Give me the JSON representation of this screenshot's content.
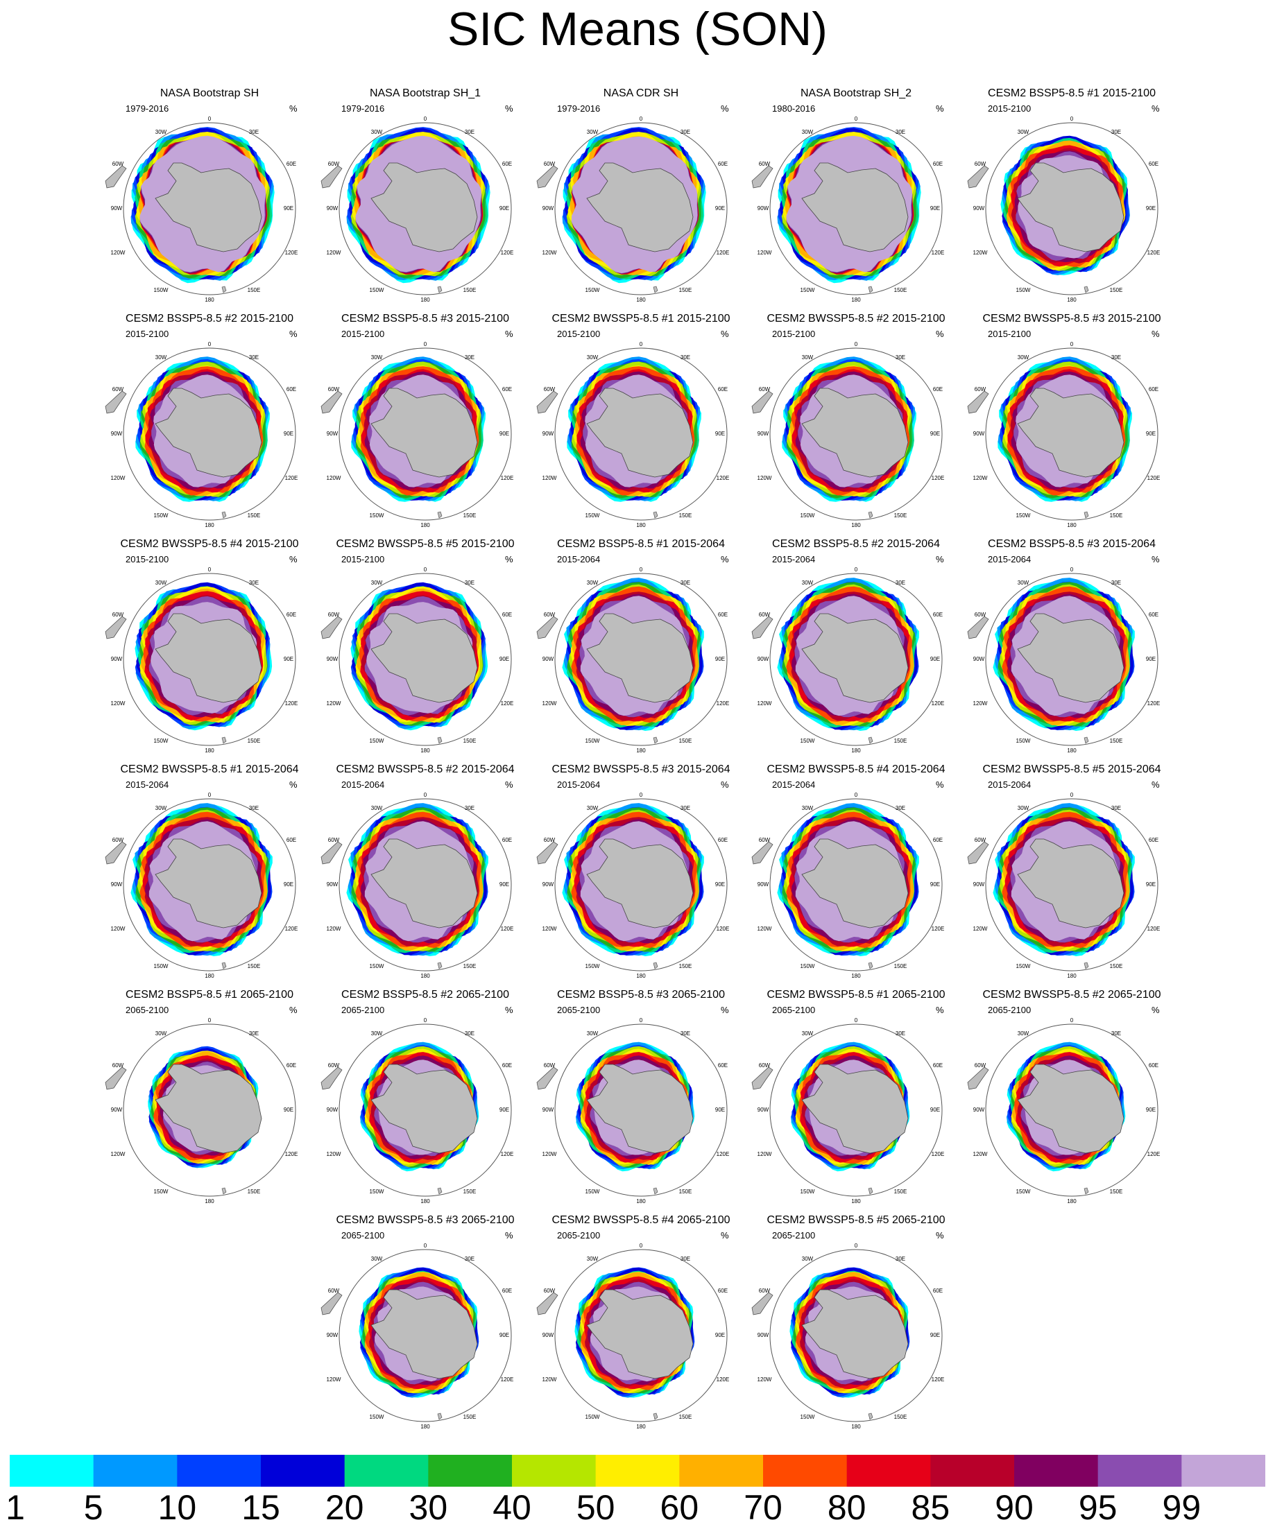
{
  "figure": {
    "title": "SIC Means (SON)"
  },
  "map_labels": {
    "lon_top": "0",
    "lon_30w": "30W",
    "lon_30e": "30E",
    "lon_60w": "60W",
    "lon_60e": "60E",
    "lon_90w": "90W",
    "lon_90e": "90E",
    "lon_120w": "120W",
    "lon_120e": "120E",
    "lon_150w": "150W",
    "lon_150e": "150E",
    "lon_bottom": "180"
  },
  "chart_data": {
    "type": "map-grid",
    "variable": "Sea ice concentration",
    "unit": "%",
    "panels": [
      {
        "title": "NASA Bootstrap SH",
        "period": "1979-2016",
        "unit": "%",
        "extent": 1.0,
        "core": 0.7
      },
      {
        "title": "NASA Bootstrap SH_1",
        "period": "1979-2016",
        "unit": "%",
        "extent": 1.0,
        "core": 0.7
      },
      {
        "title": "NASA CDR SH",
        "period": "1979-2016",
        "unit": "%",
        "extent": 1.0,
        "core": 0.72
      },
      {
        "title": "NASA Bootstrap SH_2",
        "period": "1980-2016",
        "unit": "%",
        "extent": 1.0,
        "core": 0.7
      },
      {
        "title": "CESM2 BSSP5-8.5 #1 2015-2100",
        "period": "2015-2100",
        "unit": "%",
        "extent": 0.9,
        "core": 0.2
      },
      {
        "title": "CESM2 BSSP5-8.5 #2 2015-2100",
        "period": "2015-2100",
        "unit": "%",
        "extent": 0.93,
        "core": 0.25
      },
      {
        "title": "CESM2 BSSP5-8.5 #3 2015-2100",
        "period": "2015-2100",
        "unit": "%",
        "extent": 0.93,
        "core": 0.25
      },
      {
        "title": "CESM2 BWSSP5-8.5 #1 2015-2100",
        "period": "2015-2100",
        "unit": "%",
        "extent": 0.93,
        "core": 0.25
      },
      {
        "title": "CESM2 BWSSP5-8.5 #2 2015-2100",
        "period": "2015-2100",
        "unit": "%",
        "extent": 0.93,
        "core": 0.25
      },
      {
        "title": "CESM2 BWSSP5-8.5 #3 2015-2100",
        "period": "2015-2100",
        "unit": "%",
        "extent": 0.93,
        "core": 0.25
      },
      {
        "title": "CESM2 BWSSP5-8.5 #4 2015-2100",
        "period": "2015-2100",
        "unit": "%",
        "extent": 0.95,
        "core": 0.3
      },
      {
        "title": "CESM2 BWSSP5-8.5 #5 2015-2100",
        "period": "2015-2100",
        "unit": "%",
        "extent": 0.95,
        "core": 0.3
      },
      {
        "title": "CESM2 BSSP5-8.5 #1 2015-2064",
        "period": "2015-2064",
        "unit": "%",
        "extent": 0.98,
        "core": 0.3
      },
      {
        "title": "CESM2 BSSP5-8.5 #2 2015-2064",
        "period": "2015-2064",
        "unit": "%",
        "extent": 0.98,
        "core": 0.3
      },
      {
        "title": "CESM2 BSSP5-8.5 #3 2015-2064",
        "period": "2015-2064",
        "unit": "%",
        "extent": 0.98,
        "core": 0.3
      },
      {
        "title": "CESM2 BWSSP5-8.5 #1 2015-2064",
        "period": "2015-2064",
        "unit": "%",
        "extent": 0.98,
        "core": 0.3
      },
      {
        "title": "CESM2 BWSSP5-8.5 #2 2015-2064",
        "period": "2015-2064",
        "unit": "%",
        "extent": 0.98,
        "core": 0.3
      },
      {
        "title": "CESM2 BWSSP5-8.5 #3 2015-2064",
        "period": "2015-2064",
        "unit": "%",
        "extent": 0.98,
        "core": 0.3
      },
      {
        "title": "CESM2 BWSSP5-8.5 #4 2015-2064",
        "period": "2015-2064",
        "unit": "%",
        "extent": 0.98,
        "core": 0.3
      },
      {
        "title": "CESM2 BWSSP5-8.5 #5 2015-2064",
        "period": "2015-2064",
        "unit": "%",
        "extent": 0.98,
        "core": 0.3
      },
      {
        "title": "CESM2 BSSP5-8.5 #1 2065-2100",
        "period": "2065-2100",
        "unit": "%",
        "extent": 0.78,
        "core": 0.12
      },
      {
        "title": "CESM2 BSSP5-8.5 #2 2065-2100",
        "period": "2065-2100",
        "unit": "%",
        "extent": 0.82,
        "core": 0.15
      },
      {
        "title": "CESM2 BSSP5-8.5 #3 2065-2100",
        "period": "2065-2100",
        "unit": "%",
        "extent": 0.82,
        "core": 0.15
      },
      {
        "title": "CESM2 BWSSP5-8.5 #1 2065-2100",
        "period": "2065-2100",
        "unit": "%",
        "extent": 0.82,
        "core": 0.15
      },
      {
        "title": "CESM2 BWSSP5-8.5 #2 2065-2100",
        "period": "2065-2100",
        "unit": "%",
        "extent": 0.82,
        "core": 0.15
      },
      {
        "title": "CESM2 BWSSP5-8.5 #3 2065-2100",
        "period": "2065-2100",
        "unit": "%",
        "extent": 0.84,
        "core": 0.18
      },
      {
        "title": "CESM2 BWSSP5-8.5 #4 2065-2100",
        "period": "2065-2100",
        "unit": "%",
        "extent": 0.84,
        "core": 0.18
      },
      {
        "title": "CESM2 BWSSP5-8.5 #5 2065-2100",
        "period": "2065-2100",
        "unit": "%",
        "extent": 0.84,
        "core": 0.18
      }
    ],
    "colorbar": {
      "labels": [
        "1",
        "5",
        "10",
        "15",
        "20",
        "30",
        "40",
        "50",
        "60",
        "70",
        "80",
        "85",
        "90",
        "95",
        "99"
      ],
      "colors": [
        "#00ffff",
        "#0099ff",
        "#0040ff",
        "#0000d9",
        "#00d980",
        "#20b020",
        "#b5e600",
        "#ffee00",
        "#ffb000",
        "#ff4a00",
        "#e60018",
        "#b8002a",
        "#800060",
        "#8a4db0",
        "#c3a5d8"
      ]
    }
  }
}
